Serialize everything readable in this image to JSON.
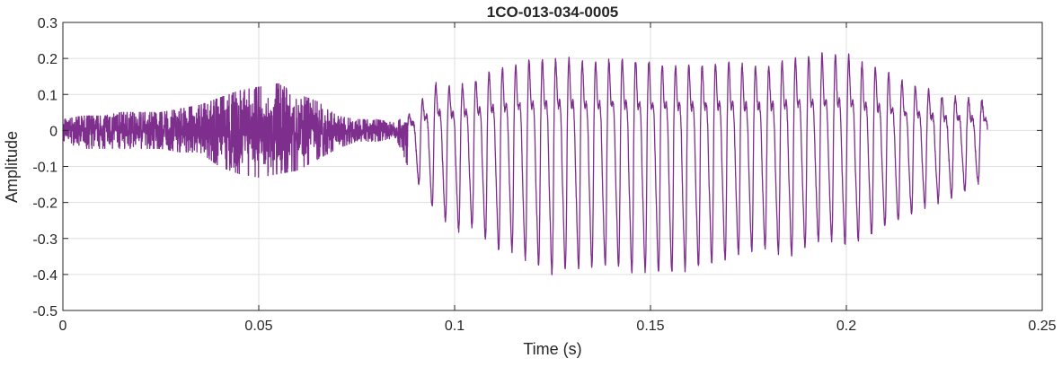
{
  "chart_data": {
    "type": "line",
    "title": "1CO-013-034-0005",
    "xlabel": "Time (s)",
    "ylabel": "Amplitude",
    "xlim": [
      0,
      0.25
    ],
    "ylim": [
      -0.5,
      0.3
    ],
    "grid": true,
    "xticks": [
      0,
      0.05,
      0.1,
      0.15,
      0.2,
      0.25
    ],
    "xtick_labels": [
      "0",
      "0.05",
      "0.1",
      "0.15",
      "0.2",
      "0.25"
    ],
    "yticks": [
      0.3,
      0.2,
      0.1,
      0,
      -0.1,
      -0.2,
      -0.3,
      -0.4,
      -0.5
    ],
    "ytick_labels": [
      "0.3",
      "0.2",
      "0.1",
      "0",
      "-0.1",
      "-0.2",
      "-0.3",
      "-0.4",
      "-0.5"
    ],
    "line_color": "#7E2F8E",
    "voicing_onset_s": 0.088,
    "pitch_period_s": 0.0034,
    "signal_end_s": 0.236,
    "envelope": {
      "t": [
        0,
        0.005,
        0.01,
        0.015,
        0.02,
        0.025,
        0.03,
        0.035,
        0.04,
        0.045,
        0.05,
        0.055,
        0.06,
        0.065,
        0.07,
        0.075,
        0.08,
        0.085,
        0.09,
        0.095,
        0.1,
        0.105,
        0.11,
        0.115,
        0.12,
        0.125,
        0.13,
        0.135,
        0.14,
        0.145,
        0.15,
        0.155,
        0.16,
        0.165,
        0.17,
        0.175,
        0.18,
        0.185,
        0.19,
        0.195,
        0.2,
        0.205,
        0.21,
        0.215,
        0.22,
        0.225,
        0.23,
        0.236
      ],
      "max": [
        0.03,
        0.04,
        0.04,
        0.05,
        0.05,
        0.05,
        0.06,
        0.07,
        0.09,
        0.11,
        0.12,
        0.13,
        0.1,
        0.08,
        0.04,
        0.03,
        0.03,
        0.02,
        0.07,
        0.16,
        0.14,
        0.17,
        0.2,
        0.22,
        0.24,
        0.24,
        0.24,
        0.23,
        0.24,
        0.24,
        0.23,
        0.22,
        0.22,
        0.22,
        0.23,
        0.22,
        0.22,
        0.24,
        0.25,
        0.26,
        0.26,
        0.22,
        0.2,
        0.16,
        0.14,
        0.11,
        0.11,
        0.1
      ],
      "min": [
        -0.03,
        -0.05,
        -0.05,
        -0.05,
        -0.05,
        -0.05,
        -0.06,
        -0.06,
        -0.1,
        -0.12,
        -0.13,
        -0.12,
        -0.11,
        -0.08,
        -0.05,
        -0.03,
        -0.03,
        -0.02,
        -0.15,
        -0.25,
        -0.32,
        -0.3,
        -0.37,
        -0.38,
        -0.42,
        -0.45,
        -0.43,
        -0.43,
        -0.42,
        -0.45,
        -0.44,
        -0.45,
        -0.44,
        -0.42,
        -0.4,
        -0.38,
        -0.37,
        -0.4,
        -0.36,
        -0.34,
        -0.36,
        -0.34,
        -0.3,
        -0.28,
        -0.24,
        -0.22,
        -0.19,
        -0.15
      ]
    }
  }
}
